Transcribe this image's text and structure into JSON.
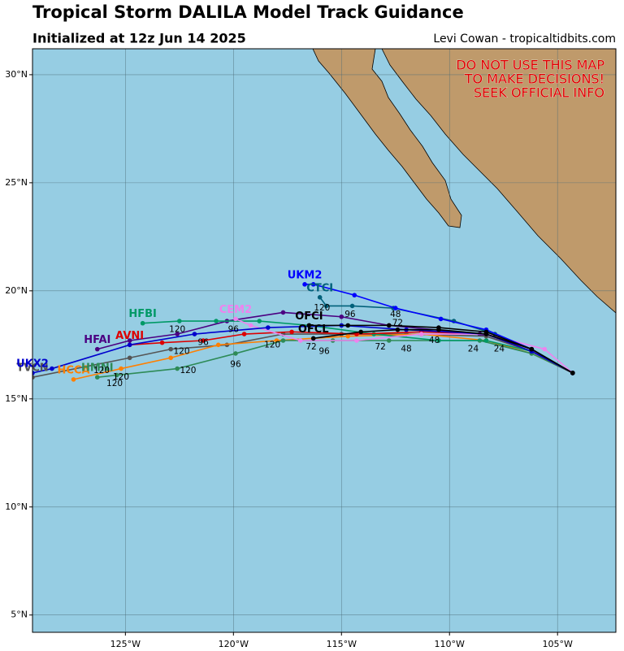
{
  "chart_data": {
    "type": "map",
    "title": "Tropical Storm DALILA Model Track Guidance",
    "subtitle": "Initialized at 12z Jun 14 2025",
    "credit": "Levi Cowan - tropicaltidbits.com",
    "warning": [
      "DO NOT USE THIS MAP",
      "TO MAKE DECISIONS!",
      "SEEK OFFICIAL INFO"
    ],
    "xlim": [
      -129.3,
      -102.3
    ],
    "ylim": [
      4.2,
      31.2
    ],
    "xticks": [
      {
        "value": -125,
        "label": "125°W"
      },
      {
        "value": -120,
        "label": "120°W"
      },
      {
        "value": -115,
        "label": "115°W"
      },
      {
        "value": -110,
        "label": "110°W"
      },
      {
        "value": -105,
        "label": "105°W"
      }
    ],
    "yticks": [
      {
        "value": 5,
        "label": "5°N"
      },
      {
        "value": 10,
        "label": "10°N"
      },
      {
        "value": 15,
        "label": "15°N"
      },
      {
        "value": 20,
        "label": "20°N"
      },
      {
        "value": 25,
        "label": "25°N"
      },
      {
        "value": 30,
        "label": "30°N"
      }
    ],
    "grid": true,
    "series": [
      {
        "name": "HFAI",
        "color": "#4b0082",
        "x": [
          -104.3,
          -106.2,
          -108.6,
          -112.8,
          -115.0,
          -117.7,
          -120.3,
          -122.6,
          -124.8,
          -126.3
        ],
        "y": [
          16.2,
          17.2,
          18.0,
          18.4,
          18.8,
          19.0,
          18.6,
          18.0,
          17.7,
          17.3
        ]
      },
      {
        "name": "TVCN",
        "color": "#555555",
        "x": [
          -104.3,
          -106.2,
          -108.3,
          -112.0,
          -115.0,
          -117.7,
          -120.3,
          -122.9,
          -124.8,
          -129.3
        ],
        "y": [
          16.2,
          17.2,
          17.9,
          18.0,
          18.0,
          18.0,
          17.5,
          17.3,
          16.9,
          16.0
        ]
      },
      {
        "name": "HCCA",
        "color": "#ff7f00",
        "x": [
          -104.3,
          -106.2,
          -108.3,
          -111.3,
          -114.7,
          -118.0,
          -120.7,
          -122.9,
          -125.2,
          -127.4
        ],
        "y": [
          16.2,
          17.1,
          17.7,
          18.0,
          17.9,
          17.7,
          17.5,
          16.9,
          16.4,
          15.9
        ]
      },
      {
        "name": "HMNI",
        "color": "#2e8b57",
        "x": [
          -104.3,
          -106.2,
          -108.6,
          -112.8,
          -115.4,
          -117.7,
          -119.9,
          -122.6,
          -125.4,
          -126.3
        ],
        "y": [
          16.2,
          17.1,
          17.7,
          17.7,
          17.7,
          17.7,
          17.1,
          16.4,
          16.1,
          16.0
        ]
      },
      {
        "name": "HFBI",
        "color": "#009966",
        "x": [
          -104.3,
          -106.2,
          -108.3,
          -110.5,
          -113.5,
          -116.5,
          -118.8,
          -120.8,
          -122.5,
          -124.2
        ],
        "y": [
          16.2,
          17.2,
          17.7,
          17.7,
          18.0,
          18.4,
          18.6,
          18.6,
          18.6,
          18.5
        ]
      },
      {
        "name": "AVNI",
        "color": "#dd0000",
        "x": [
          -104.3,
          -106.2,
          -108.3,
          -111.3,
          -114.3,
          -117.3,
          -119.5,
          -121.4,
          -123.3,
          -124.8
        ],
        "y": [
          16.2,
          17.2,
          18.0,
          18.1,
          18.0,
          18.1,
          18.0,
          17.7,
          17.6,
          17.5
        ]
      },
      {
        "name": "CEM2",
        "color": "#ee82ee",
        "x": [
          -104.3,
          -105.6,
          -108.3,
          -111.3,
          -114.3,
          -116.9,
          -119.2,
          -119.9
        ],
        "y": [
          16.2,
          17.3,
          18.0,
          18.0,
          17.7,
          17.7,
          18.4,
          18.7
        ]
      },
      {
        "name": "UKX2",
        "color": "#0000cd",
        "x": [
          -104.3,
          -106.2,
          -108.3,
          -112.0,
          -115.0,
          -118.4,
          -121.8,
          -124.8,
          -128.4,
          -129.3
        ],
        "y": [
          16.2,
          17.2,
          18.0,
          18.2,
          18.4,
          18.3,
          18.0,
          17.5,
          16.4,
          16.2
        ]
      },
      {
        "name": "CTCI",
        "color": "#00607a",
        "x": [
          -104.3,
          -106.2,
          -107.9,
          -109.8,
          -112.6,
          -114.5,
          -115.7,
          -116.0
        ],
        "y": [
          16.2,
          17.3,
          18.0,
          18.6,
          19.2,
          19.3,
          19.3,
          19.7
        ]
      },
      {
        "name": "UKM2",
        "color": "#0000ff",
        "x": [
          -104.3,
          -106.2,
          -108.3,
          -110.4,
          -112.5,
          -114.4,
          -116.3,
          -116.7
        ],
        "y": [
          16.2,
          17.3,
          18.2,
          18.7,
          19.2,
          19.8,
          20.3,
          20.3
        ]
      },
      {
        "name": "OFCI",
        "color": "#000000",
        "x": [
          -104.3,
          -106.2,
          -108.3,
          -110.5,
          -112.8,
          -114.7,
          -116.5
        ],
        "y": [
          16.2,
          17.3,
          18.1,
          18.3,
          18.4,
          18.4,
          18.4
        ]
      },
      {
        "name": "OFCL",
        "color": "#000000",
        "x": [
          -104.3,
          -106.2,
          -108.3,
          -110.5,
          -112.4,
          -114.1,
          -116.3
        ],
        "y": [
          16.2,
          17.3,
          18.0,
          18.2,
          18.2,
          18.1,
          17.8
        ]
      }
    ],
    "hour_labels": [
      {
        "text": "120",
        "x": -115.9,
        "y": 19.2
      },
      {
        "text": "96",
        "x": -114.6,
        "y": 18.9
      },
      {
        "text": "48",
        "x": -112.5,
        "y": 18.9
      },
      {
        "text": "72",
        "x": -112.4,
        "y": 18.5
      },
      {
        "text": "72",
        "x": -116.4,
        "y": 17.4
      },
      {
        "text": "96",
        "x": -115.8,
        "y": 17.2
      },
      {
        "text": "72",
        "x": -113.2,
        "y": 17.4
      },
      {
        "text": "48",
        "x": -112.0,
        "y": 17.3
      },
      {
        "text": "120",
        "x": -122.6,
        "y": 18.2
      },
      {
        "text": "120",
        "x": -122.4,
        "y": 17.2
      },
      {
        "text": "120",
        "x": -118.2,
        "y": 17.5
      },
      {
        "text": "96",
        "x": -120.0,
        "y": 18.2
      },
      {
        "text": "96",
        "x": -121.4,
        "y": 17.6
      },
      {
        "text": "96",
        "x": -119.9,
        "y": 16.6
      },
      {
        "text": "120",
        "x": -122.1,
        "y": 16.3
      },
      {
        "text": "120",
        "x": -126.1,
        "y": 16.3
      },
      {
        "text": "120",
        "x": -125.5,
        "y": 15.7
      },
      {
        "text": "120",
        "x": -125.2,
        "y": 16.0
      },
      {
        "text": "24",
        "x": -108.9,
        "y": 17.3
      },
      {
        "text": "24",
        "x": -107.7,
        "y": 17.3
      },
      {
        "text": "48",
        "x": -110.7,
        "y": 17.7
      }
    ]
  }
}
